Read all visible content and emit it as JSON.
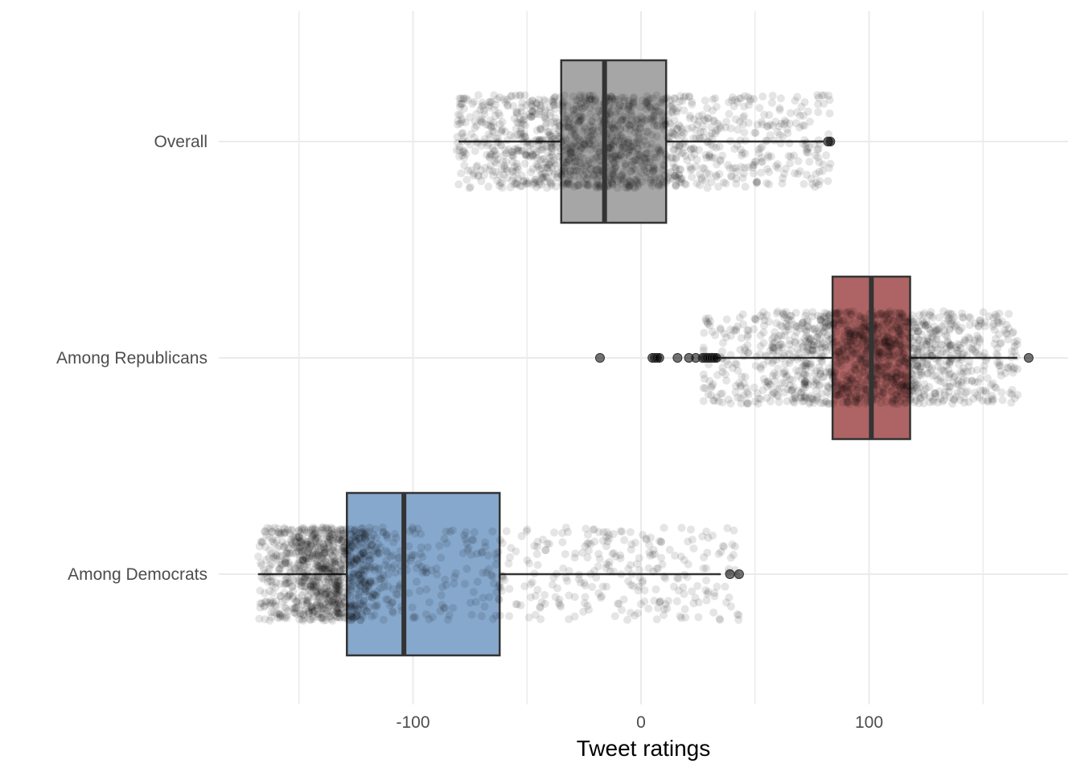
{
  "chart_data": {
    "type": "boxplot",
    "orientation": "horizontal",
    "title": "",
    "xlabel": "Tweet ratings",
    "ylabel": "",
    "xlim": [
      -178,
      188
    ],
    "x_ticks": [
      -100,
      0,
      100
    ],
    "x_tick_labels": [
      "-100",
      "0",
      "100"
    ],
    "x_minor_gridlines": [
      -150,
      -50,
      50,
      150
    ],
    "grid": true,
    "legend": "none",
    "categories": [
      "Overall",
      "Among Republicans",
      "Among Democrats"
    ],
    "series": [
      {
        "category": "Overall",
        "fill": "#a6a6a6",
        "whisker_low": -80,
        "q1": -35,
        "median": -16,
        "q3": 11,
        "whisker_high": 80,
        "outliers": [
          82,
          83
        ],
        "points_range": [
          -81,
          84
        ],
        "dense_range": [
          -52,
          11
        ]
      },
      {
        "category": "Among Republicans",
        "fill": "#ae6464",
        "whisker_low": 33,
        "q1": 84,
        "median": 101,
        "q3": 118,
        "whisker_high": 165,
        "outliers": [
          -18,
          5,
          6,
          7,
          8,
          16,
          21,
          24,
          27,
          28,
          29,
          30,
          31,
          32,
          33,
          170
        ],
        "points_range": [
          27,
          166
        ],
        "dense_range": [
          73,
          127
        ]
      },
      {
        "category": "Among Democrats",
        "fill": "#86a8cc",
        "whisker_low": -168,
        "q1": -129,
        "median": -104,
        "q3": -62,
        "whisker_high": 35,
        "outliers": [
          39,
          43
        ],
        "points_range": [
          -168,
          43
        ],
        "dense_range": [
          -153,
          -124
        ]
      }
    ],
    "point_color": "#000000",
    "point_alpha": 0.1
  }
}
